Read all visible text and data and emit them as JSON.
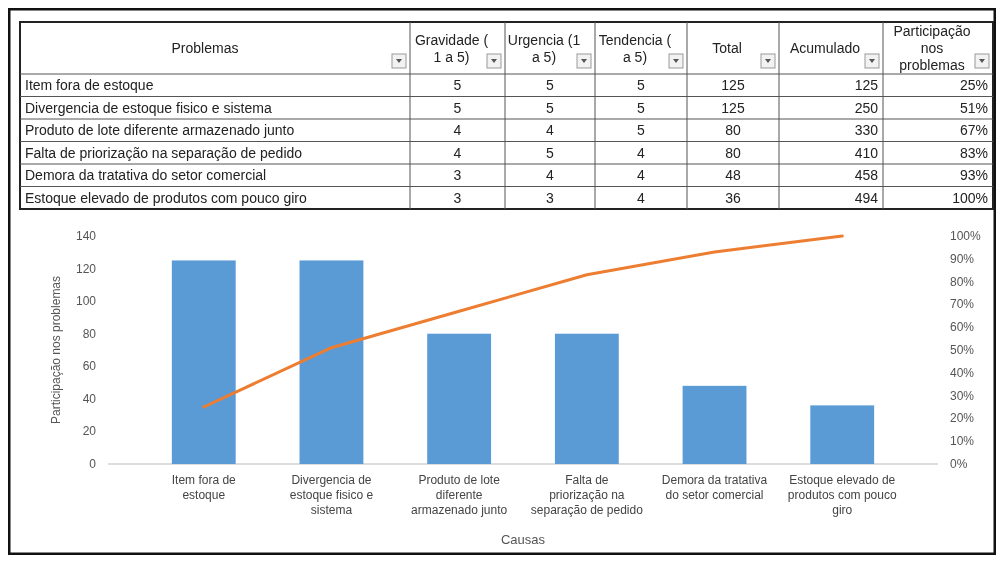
{
  "chart_data": [
    {
      "type": "other",
      "categories": [
        "Problemas",
        "Gravidade ( 1 a 5)",
        "Urgencia (1 a 5)",
        "Tendencia ( a 5)",
        "Total",
        "Acumulado",
        "Participação nos problemas"
      ],
      "y_categories": [
        "Item fora de estoque",
        "Divergencia de estoque fisico e sistema",
        "Produto de lote diferente armazenado junto",
        "Falta de priorização na separação de pedido",
        "Demora da tratativa do setor comercial",
        "Estoque elevado de produtos com pouco giro"
      ],
      "cell_labels": [
        [
          "5",
          "5",
          "5",
          "125",
          "125",
          "25%"
        ],
        [
          "5",
          "5",
          "5",
          "125",
          "250",
          "51%"
        ],
        [
          "4",
          "4",
          "5",
          "80",
          "330",
          "67%"
        ],
        [
          "4",
          "5",
          "4",
          "80",
          "410",
          "83%"
        ],
        [
          "3",
          "4",
          "4",
          "48",
          "458",
          "93%"
        ],
        [
          "3",
          "3",
          "4",
          "36",
          "494",
          "100%"
        ]
      ]
    },
    {
      "type": "bar",
      "xlabel": "Causas",
      "ylabel": "Participação nos problemas",
      "categories": [
        "Item fora de estoque",
        "Divergencia de estoque fisico e sistema",
        "Produto de lote diferente armazenado junto",
        "Falta de priorização na separação de pedido",
        "Demora da tratativa do setor comercial",
        "Estoque elevado de produtos com pouco giro"
      ],
      "series": [
        {
          "type": "bar",
          "color": "#5b9bd5",
          "values": [
            125,
            125,
            80,
            80,
            48,
            36
          ]
        },
        {
          "type": "line",
          "axis": "y2",
          "color": "#ed7d31",
          "values": [
            25,
            51,
            67,
            83,
            93,
            100
          ]
        }
      ],
      "ylim": [
        0,
        140
      ],
      "yticks": [
        0,
        20,
        40,
        60,
        80,
        100,
        120,
        140
      ],
      "y2lim": [
        0,
        100
      ],
      "y2ticks": [
        {
          "value": 0,
          "label": "0%"
        },
        {
          "value": 10,
          "label": "10%"
        },
        {
          "value": 20,
          "label": "20%"
        },
        {
          "value": 30,
          "label": "30%"
        },
        {
          "value": 40,
          "label": "40%"
        },
        {
          "value": 50,
          "label": "50%"
        },
        {
          "value": 60,
          "label": "60%"
        },
        {
          "value": 70,
          "label": "70%"
        },
        {
          "value": 80,
          "label": "80%"
        },
        {
          "value": 90,
          "label": "90%"
        },
        {
          "value": 100,
          "label": "100%"
        }
      ],
      "grid": false,
      "marker": "none",
      "line_style": "solid"
    }
  ]
}
